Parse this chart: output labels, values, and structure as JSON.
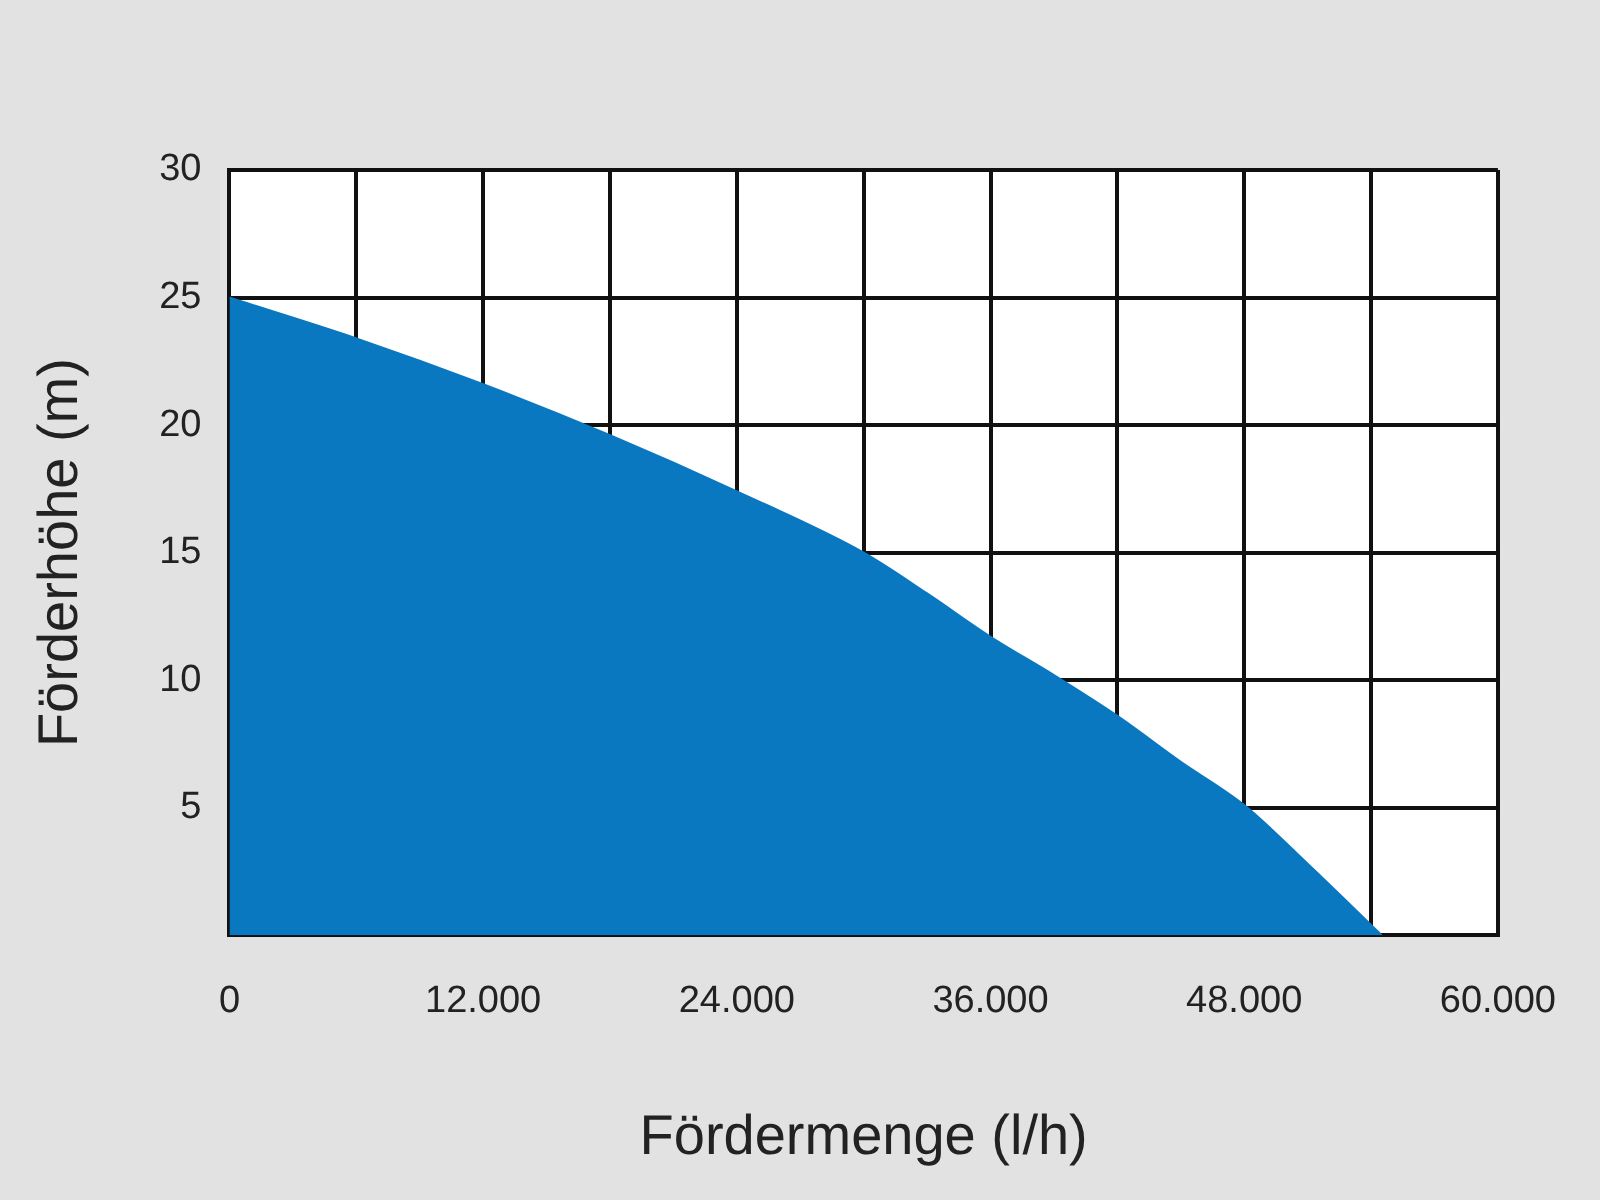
{
  "chart_data": {
    "type": "area",
    "xlabel": "Fördermenge (l/h)",
    "ylabel": "Förderhöhe (m)",
    "x": [
      0,
      6000,
      12000,
      18000,
      24000,
      30000,
      33000,
      36000,
      39000,
      42000,
      45000,
      48000,
      51000,
      54500
    ],
    "series": [
      {
        "color": "#0a78c0",
        "values": [
          25,
          23.4,
          21.6,
          19.6,
          17.4,
          15,
          13.4,
          11.7,
          10.2,
          8.6,
          6.8,
          5.1,
          2.8,
          0
        ]
      }
    ],
    "xlim": [
      0,
      60000
    ],
    "xticks": [
      {
        "value": 0,
        "label": "0"
      },
      {
        "value": 6000,
        "label": null
      },
      {
        "value": 12000,
        "label": "12.000"
      },
      {
        "value": 18000,
        "label": null
      },
      {
        "value": 24000,
        "label": "24.000"
      },
      {
        "value": 30000,
        "label": null
      },
      {
        "value": 36000,
        "label": "36.000"
      },
      {
        "value": 42000,
        "label": null
      },
      {
        "value": 48000,
        "label": "48.000"
      },
      {
        "value": 54000,
        "label": null
      },
      {
        "value": 60000,
        "label": "60.000"
      }
    ],
    "ylim": [
      0,
      30
    ],
    "yticks": [
      {
        "value": 0,
        "label": null
      },
      5,
      10,
      15,
      20,
      25,
      30
    ],
    "grid": true,
    "marker": "none",
    "legend": false
  }
}
